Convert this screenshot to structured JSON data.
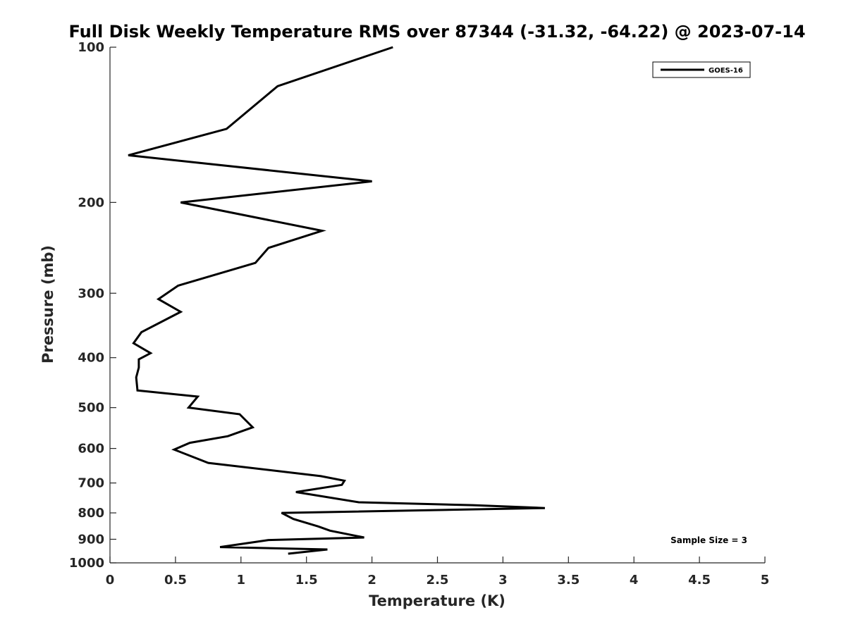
{
  "chart_data": {
    "type": "line",
    "title": "Full Disk Weekly Temperature RMS over 87344 (-31.32, -64.22) @ 2023-07-14",
    "xlabel": "Temperature (K)",
    "ylabel": "Pressure (mb)",
    "xlim": [
      0,
      5
    ],
    "ylim": [
      1000,
      100
    ],
    "yscale": "log",
    "y_reversed": true,
    "x_ticks": [
      "0",
      "0.5",
      "1",
      "1.5",
      "2",
      "2.5",
      "3",
      "3.5",
      "4",
      "4.5",
      "5"
    ],
    "y_ticks": [
      "100",
      "200",
      "300",
      "400",
      "500",
      "600",
      "700",
      "800",
      "900",
      "1000"
    ],
    "grid": false,
    "legend_position": "top-right",
    "annotation": "Sample Size = 3",
    "series": [
      {
        "name": "GOES-16",
        "color": "#000000",
        "x": [
          2.16,
          1.28,
          0.89,
          0.14,
          2.0,
          0.54,
          1.62,
          1.21,
          1.11,
          0.52,
          0.37,
          0.54,
          0.24,
          0.18,
          0.31,
          0.22,
          0.22,
          0.2,
          0.21,
          0.67,
          0.6,
          0.99,
          1.09,
          0.9,
          0.61,
          0.49,
          0.75,
          1.61,
          1.79,
          1.77,
          1.42,
          1.9,
          2.77,
          3.32,
          1.31,
          1.4,
          1.59,
          1.68,
          1.94,
          1.21,
          0.84,
          1.66,
          1.36
        ],
        "y": [
          100,
          119,
          144,
          162,
          182,
          200,
          227,
          245,
          262,
          290,
          308,
          326,
          357,
          375,
          392,
          403,
          418,
          437,
          463,
          476,
          500,
          515,
          546,
          568,
          585,
          603,
          640,
          679,
          693,
          706,
          729,
          763,
          773,
          783,
          800,
          822,
          850,
          866,
          893,
          903,
          932,
          942,
          960
        ]
      }
    ]
  }
}
